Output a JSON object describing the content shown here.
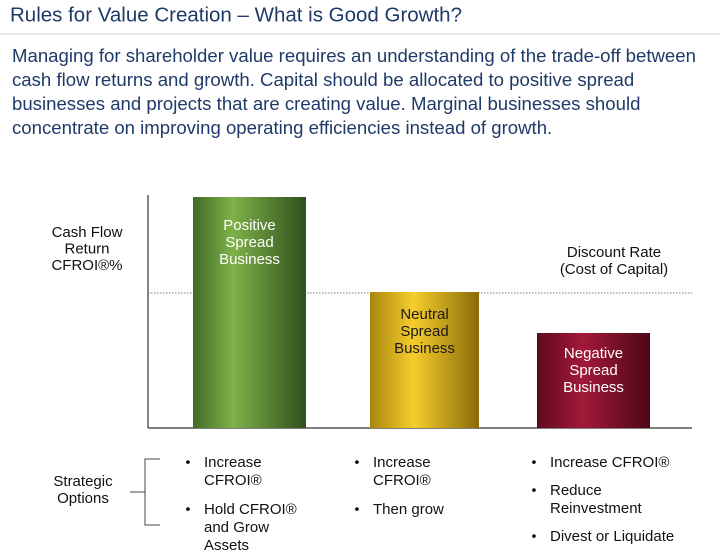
{
  "header": {
    "title": "Rules for Value Creation – What is Good Growth?"
  },
  "intro": [
    "Managing for shareholder value requires an understanding of the trade-off between",
    "cash flow returns and growth. Capital should be allocated to positive spread",
    "businesses and projects that are creating value. Marginal businesses should",
    "concentrate on improving operating efficiencies instead of growth."
  ],
  "diagram": {
    "y_axis_label": [
      "Cash Flow",
      "Return",
      "CFROI®%"
    ],
    "reference_line_label": [
      "Discount Rate",
      "(Cost of Capital)"
    ],
    "bars": [
      {
        "label": [
          "Positive",
          "Spread",
          "Business"
        ]
      },
      {
        "label": [
          "Neutral",
          "Spread",
          "Business"
        ]
      },
      {
        "label": [
          "Negative",
          "Spread",
          "Business"
        ]
      }
    ],
    "options_label": [
      "Strategic",
      "Options"
    ],
    "options": [
      [
        [
          "Increase",
          "CFROI®"
        ],
        [
          "Hold CFROI®",
          "and Grow",
          "Assets"
        ]
      ],
      [
        [
          "Increase",
          "CFROI®"
        ],
        [
          "Then grow"
        ]
      ],
      [
        [
          "Increase CFROI®"
        ],
        [
          "Reduce",
          "Reinvestment"
        ],
        [
          "Divest or Liquidate"
        ]
      ]
    ]
  }
}
